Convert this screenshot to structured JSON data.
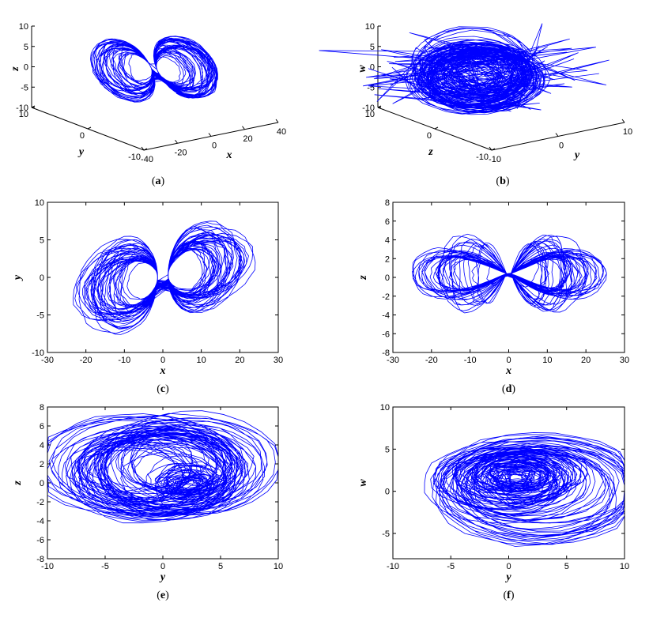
{
  "chart_data": [
    {
      "id": "a",
      "type": "line",
      "projection": "3d",
      "panel_label": "a",
      "axes": [
        "x",
        "y",
        "z"
      ],
      "xlabel": "x",
      "ylabel": "y",
      "zlabel": "z",
      "xlim": [
        -40,
        40
      ],
      "ylim": [
        -10,
        10
      ],
      "zlim": [
        -10,
        10
      ],
      "xticks": [
        -40,
        -20,
        0,
        20,
        40
      ],
      "yticks": [
        -10,
        0,
        10
      ],
      "zticks": [
        -10,
        -5,
        0,
        5,
        10
      ],
      "series": [
        {
          "color": "#0000ff",
          "x_range": [
            -27,
            27
          ],
          "y_range": [
            -9,
            9
          ],
          "z_range": [
            -7,
            8
          ]
        }
      ]
    },
    {
      "id": "b",
      "type": "line",
      "projection": "3d",
      "panel_label": "b",
      "axes": [
        "y",
        "z",
        "w"
      ],
      "xlabel": "y",
      "ylabel": "z",
      "zlabel": "w",
      "xlim": [
        -10,
        10
      ],
      "ylim": [
        -10,
        10
      ],
      "zlim": [
        -10,
        10
      ],
      "xticks": [
        -10,
        0,
        10
      ],
      "yticks": [
        -10,
        0,
        10
      ],
      "zticks": [
        -10,
        -5,
        0,
        5,
        10
      ],
      "series": [
        {
          "color": "#0000ff",
          "x_range": [
            -9,
            9
          ],
          "y_range": [
            -7,
            8
          ],
          "z_range": [
            -7,
            8
          ]
        }
      ]
    },
    {
      "id": "c",
      "type": "line",
      "panel_label": "c",
      "xlabel": "x",
      "ylabel": "y",
      "xlim": [
        -30,
        30
      ],
      "ylim": [
        -10,
        10
      ],
      "xticks": [
        -30,
        -20,
        -10,
        0,
        10,
        20,
        30
      ],
      "yticks": [
        -10,
        -5,
        0,
        5,
        10
      ],
      "series": [
        {
          "color": "#0000ff",
          "x_range": [
            -27,
            27
          ],
          "y_range": [
            -9,
            9.3
          ]
        }
      ]
    },
    {
      "id": "d",
      "type": "line",
      "panel_label": "d",
      "xlabel": "x",
      "ylabel": "z",
      "xlim": [
        -30,
        30
      ],
      "ylim": [
        -8,
        8
      ],
      "xticks": [
        -30,
        -20,
        -10,
        0,
        10,
        20,
        30
      ],
      "yticks": [
        -8,
        -6,
        -4,
        -2,
        0,
        2,
        4,
        6,
        8
      ],
      "series": [
        {
          "color": "#0000ff",
          "x_range": [
            -27,
            27
          ],
          "y_range": [
            -7,
            7.8
          ]
        }
      ]
    },
    {
      "id": "e",
      "type": "line",
      "panel_label": "e",
      "xlabel": "y",
      "ylabel": "z",
      "xlim": [
        -10,
        10
      ],
      "ylim": [
        -8,
        8
      ],
      "xticks": [
        -10,
        -5,
        0,
        5,
        10
      ],
      "yticks": [
        -8,
        -6,
        -4,
        -2,
        0,
        2,
        4,
        6,
        8
      ],
      "series": [
        {
          "color": "#0000ff",
          "x_range": [
            -9,
            9.5
          ],
          "y_range": [
            -6.5,
            7
          ]
        }
      ]
    },
    {
      "id": "f",
      "type": "line",
      "panel_label": "f",
      "xlabel": "y",
      "ylabel": "w",
      "xlim": [
        -10,
        10
      ],
      "ylim": [
        -8,
        10
      ],
      "xticks": [
        -10,
        -5,
        0,
        5,
        10
      ],
      "yticks": [
        -5,
        0,
        5,
        10
      ],
      "series": [
        {
          "color": "#0000ff",
          "x_range": [
            -9,
            9.5
          ],
          "y_range": [
            -7.5,
            8
          ]
        }
      ]
    }
  ]
}
